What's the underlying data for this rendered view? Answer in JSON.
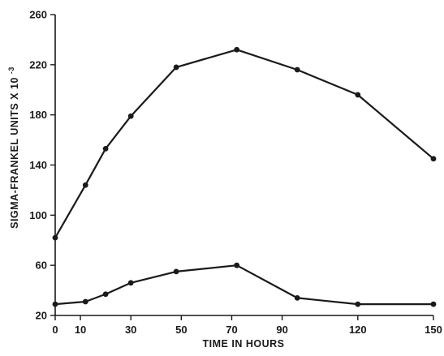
{
  "chart_data": {
    "type": "line",
    "title": "",
    "xlabel": "TIME IN HOURS",
    "ylabel": "SIGMA-FRANKEL UNITS X 10",
    "ylabel_exponent": "-3",
    "xlim": [
      0,
      150
    ],
    "ylim": [
      20,
      260
    ],
    "x_ticks": [
      0,
      10,
      30,
      50,
      70,
      90,
      120,
      150
    ],
    "y_ticks": [
      20,
      60,
      100,
      140,
      180,
      220,
      260
    ],
    "grid": false,
    "series": [
      {
        "x": [
          0,
          12,
          20,
          30,
          48,
          72,
          96,
          120,
          150
        ],
        "values": [
          82,
          124,
          153,
          179,
          218,
          232,
          216,
          196,
          145
        ]
      },
      {
        "x": [
          0,
          12,
          20,
          30,
          48,
          72,
          96,
          120,
          150
        ],
        "values": [
          29,
          31,
          37,
          46,
          55,
          60,
          34,
          29,
          29
        ]
      }
    ]
  }
}
